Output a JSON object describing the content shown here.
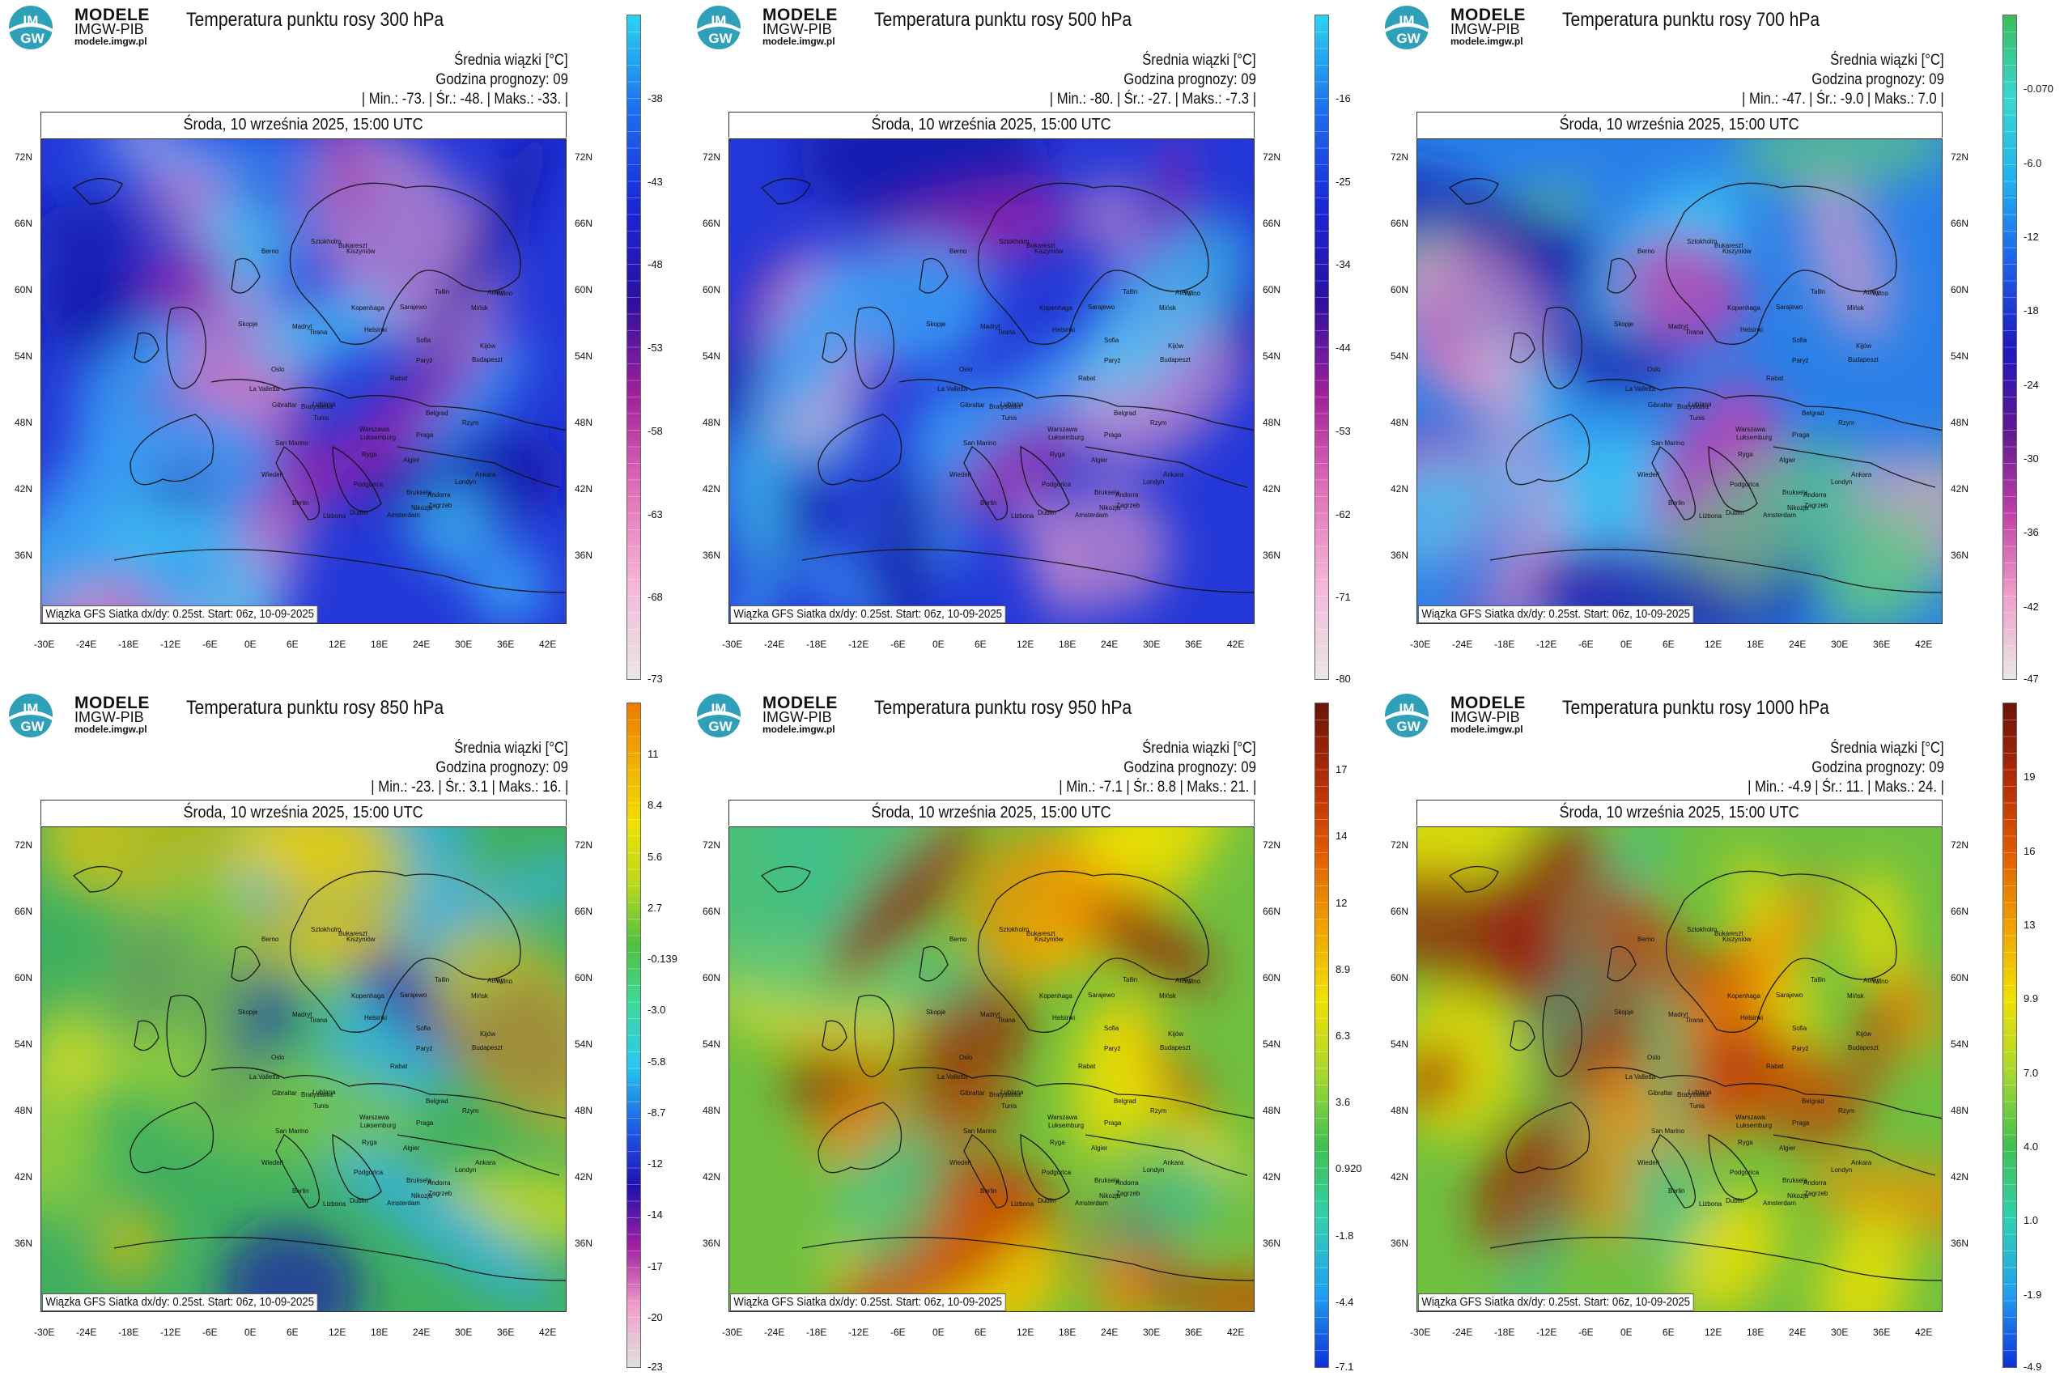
{
  "logo": {
    "name": "MODELE",
    "org": "IMGW-PIB",
    "url": "modele.imgw.pl",
    "mark": "IM GW"
  },
  "labels": {
    "srednia": "Średnia wiązki [°C]",
    "godzina": "Godzina prognozy: 09",
    "min": "Min.:",
    "sr": "Śr.:",
    "maks": "Maks.:"
  },
  "date": "Środa, 10 września 2025, 15:00 UTC",
  "credit": "Wiązka GFS Siatka dx/dy: 0.25st. Start: 06z, 10-09-2025",
  "axes": {
    "lon": [
      "-30E",
      "-24E",
      "-18E",
      "-12E",
      "-6E",
      "0E",
      "6E",
      "12E",
      "18E",
      "24E",
      "30E",
      "36E",
      "42E"
    ],
    "lat": [
      "72N",
      "66N",
      "60N",
      "54N",
      "48N",
      "42N",
      "36N"
    ]
  },
  "cities": [
    "Oslo",
    "Sztokholm",
    "Helsinki",
    "Tallin",
    "Ryga",
    "Wilno",
    "Kopenhaga",
    "Mińsk",
    "Dublin",
    "Amsterdam",
    "Londyn",
    "Berlin",
    "Warszawa",
    "Bruksela",
    "Paryż",
    "Luksemburg",
    "Praga",
    "Wiedeń",
    "Kijów",
    "Bratysława",
    "Budapeszt",
    "Berno",
    "Zagrzeb",
    "Lublana",
    "Kiszyniów",
    "Bukareszt",
    "Belgrad",
    "San Marino",
    "Sarajewo",
    "Podgorica",
    "Sofia",
    "Andorra",
    "Rzym",
    "Tirana",
    "Skopje",
    "Madryt",
    "Lizbona",
    "Ankara",
    "Ateny",
    "Gibraltar",
    "Algier",
    "Tunis",
    "La Valletta",
    "Rabat",
    "Nikozja"
  ],
  "panels": [
    {
      "id": "300",
      "title": "Temperatura punktu rosy 300 hPa",
      "min": "-73.",
      "sr": "-48.",
      "max": "-33.",
      "scale": "cold",
      "colorbar": [
        "-38",
        "-43",
        "-48",
        "-53",
        "-58",
        "-63",
        "-68",
        "-73"
      ]
    },
    {
      "id": "500",
      "title": "Temperatura punktu rosy 500 hPa",
      "min": "-80.",
      "sr": "-27.",
      "max": "-7.3",
      "scale": "cold",
      "colorbar": [
        "-16",
        "-25",
        "-34",
        "-44",
        "-53",
        "-62",
        "-71",
        "-80"
      ]
    },
    {
      "id": "700",
      "title": "Temperatura punktu rosy 700 hPa",
      "min": "-47.",
      "sr": "-9.0",
      "max": "7.0",
      "scale": "mid",
      "colorbar": [
        "-0.070",
        "-6.0",
        "-12",
        "-18",
        "-24",
        "-30",
        "-36",
        "-42",
        "-47"
      ]
    },
    {
      "id": "850",
      "title": "Temperatura punktu rosy 850 hPa",
      "min": "-23.",
      "sr": "3.1",
      "max": "16.",
      "scale": "warm",
      "colorbar": [
        "11",
        "8.4",
        "5.6",
        "2.7",
        "-0.139",
        "-3.0",
        "-5.8",
        "-8.7",
        "-12",
        "-14",
        "-17",
        "-20",
        "-23"
      ]
    },
    {
      "id": "950",
      "title": "Temperatura punktu rosy 950 hPa",
      "min": "-7.1",
      "sr": "8.8",
      "max": "21.",
      "scale": "hot",
      "colorbar": [
        "17",
        "14",
        "12",
        "8.9",
        "6.3",
        "3.6",
        "0.920",
        "-1.8",
        "-4.4",
        "-7.1"
      ]
    },
    {
      "id": "1000",
      "title": "Temperatura punktu rosy 1000 hPa",
      "min": "-4.9",
      "sr": "11.",
      "max": "24.",
      "scale": "hot",
      "colorbar": [
        "19",
        "16",
        "13",
        "9.9",
        "7.0",
        "4.0",
        "1.0",
        "-1.9",
        "-4.9"
      ]
    }
  ],
  "colors": {
    "ocean_dark": "#1e22c8",
    "cyan": "#2ad4f0",
    "magenta": "#a020a0",
    "pink": "#f0a0c8",
    "green": "#3cbc5a",
    "yellow": "#f0e000",
    "orange": "#f07800",
    "darkred": "#8c1a0a"
  }
}
